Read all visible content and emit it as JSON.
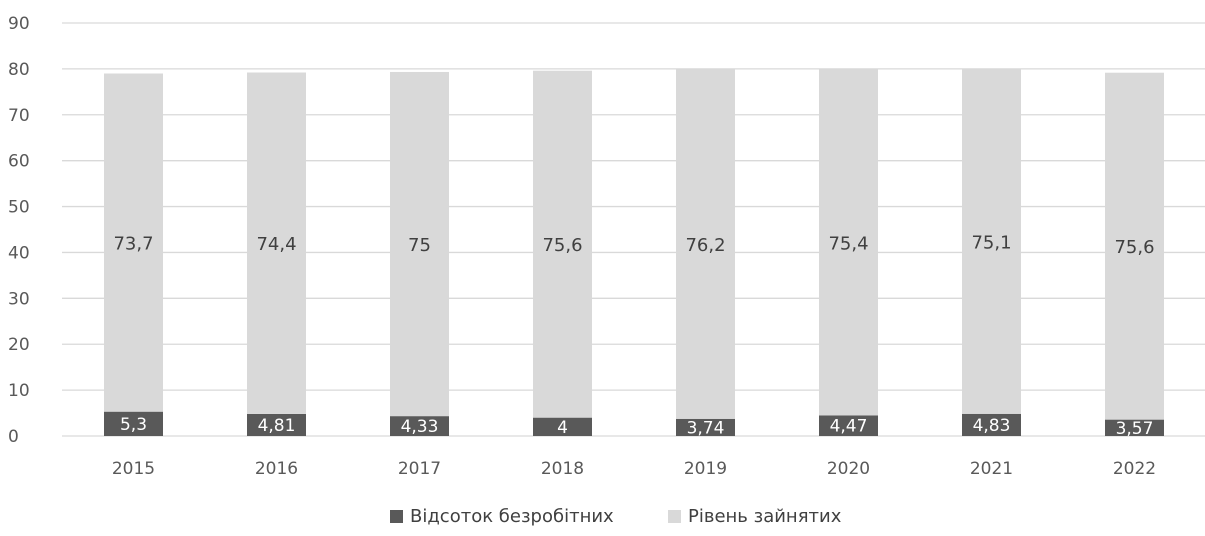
{
  "chart_data": {
    "type": "bar",
    "stacked": true,
    "categories": [
      "2015",
      "2016",
      "2017",
      "2018",
      "2019",
      "2020",
      "2021",
      "2022"
    ],
    "series": [
      {
        "name": "Відсоток безробітних",
        "values": [
          5.3,
          4.81,
          4.33,
          4,
          3.74,
          4.47,
          4.83,
          3.57
        ],
        "labels": [
          "5,3",
          "4,81",
          "4,33",
          "4",
          "3,74",
          "4,47",
          "4,83",
          "3,57"
        ],
        "color": "#595959"
      },
      {
        "name": "Рівень зайнятих",
        "values": [
          73.7,
          74.4,
          75,
          75.6,
          76.2,
          75.4,
          75.1,
          75.6
        ],
        "labels": [
          "73,7",
          "74,4",
          "75",
          "75,6",
          "76,2",
          "75,4",
          "75,1",
          "75,6"
        ],
        "color": "#d9d9d9"
      }
    ],
    "ylim": [
      0,
      90
    ],
    "yticks": [
      "0",
      "10",
      "20",
      "30",
      "40",
      "50",
      "60",
      "70",
      "80",
      "90"
    ],
    "grid": true,
    "legend": "bottom"
  }
}
